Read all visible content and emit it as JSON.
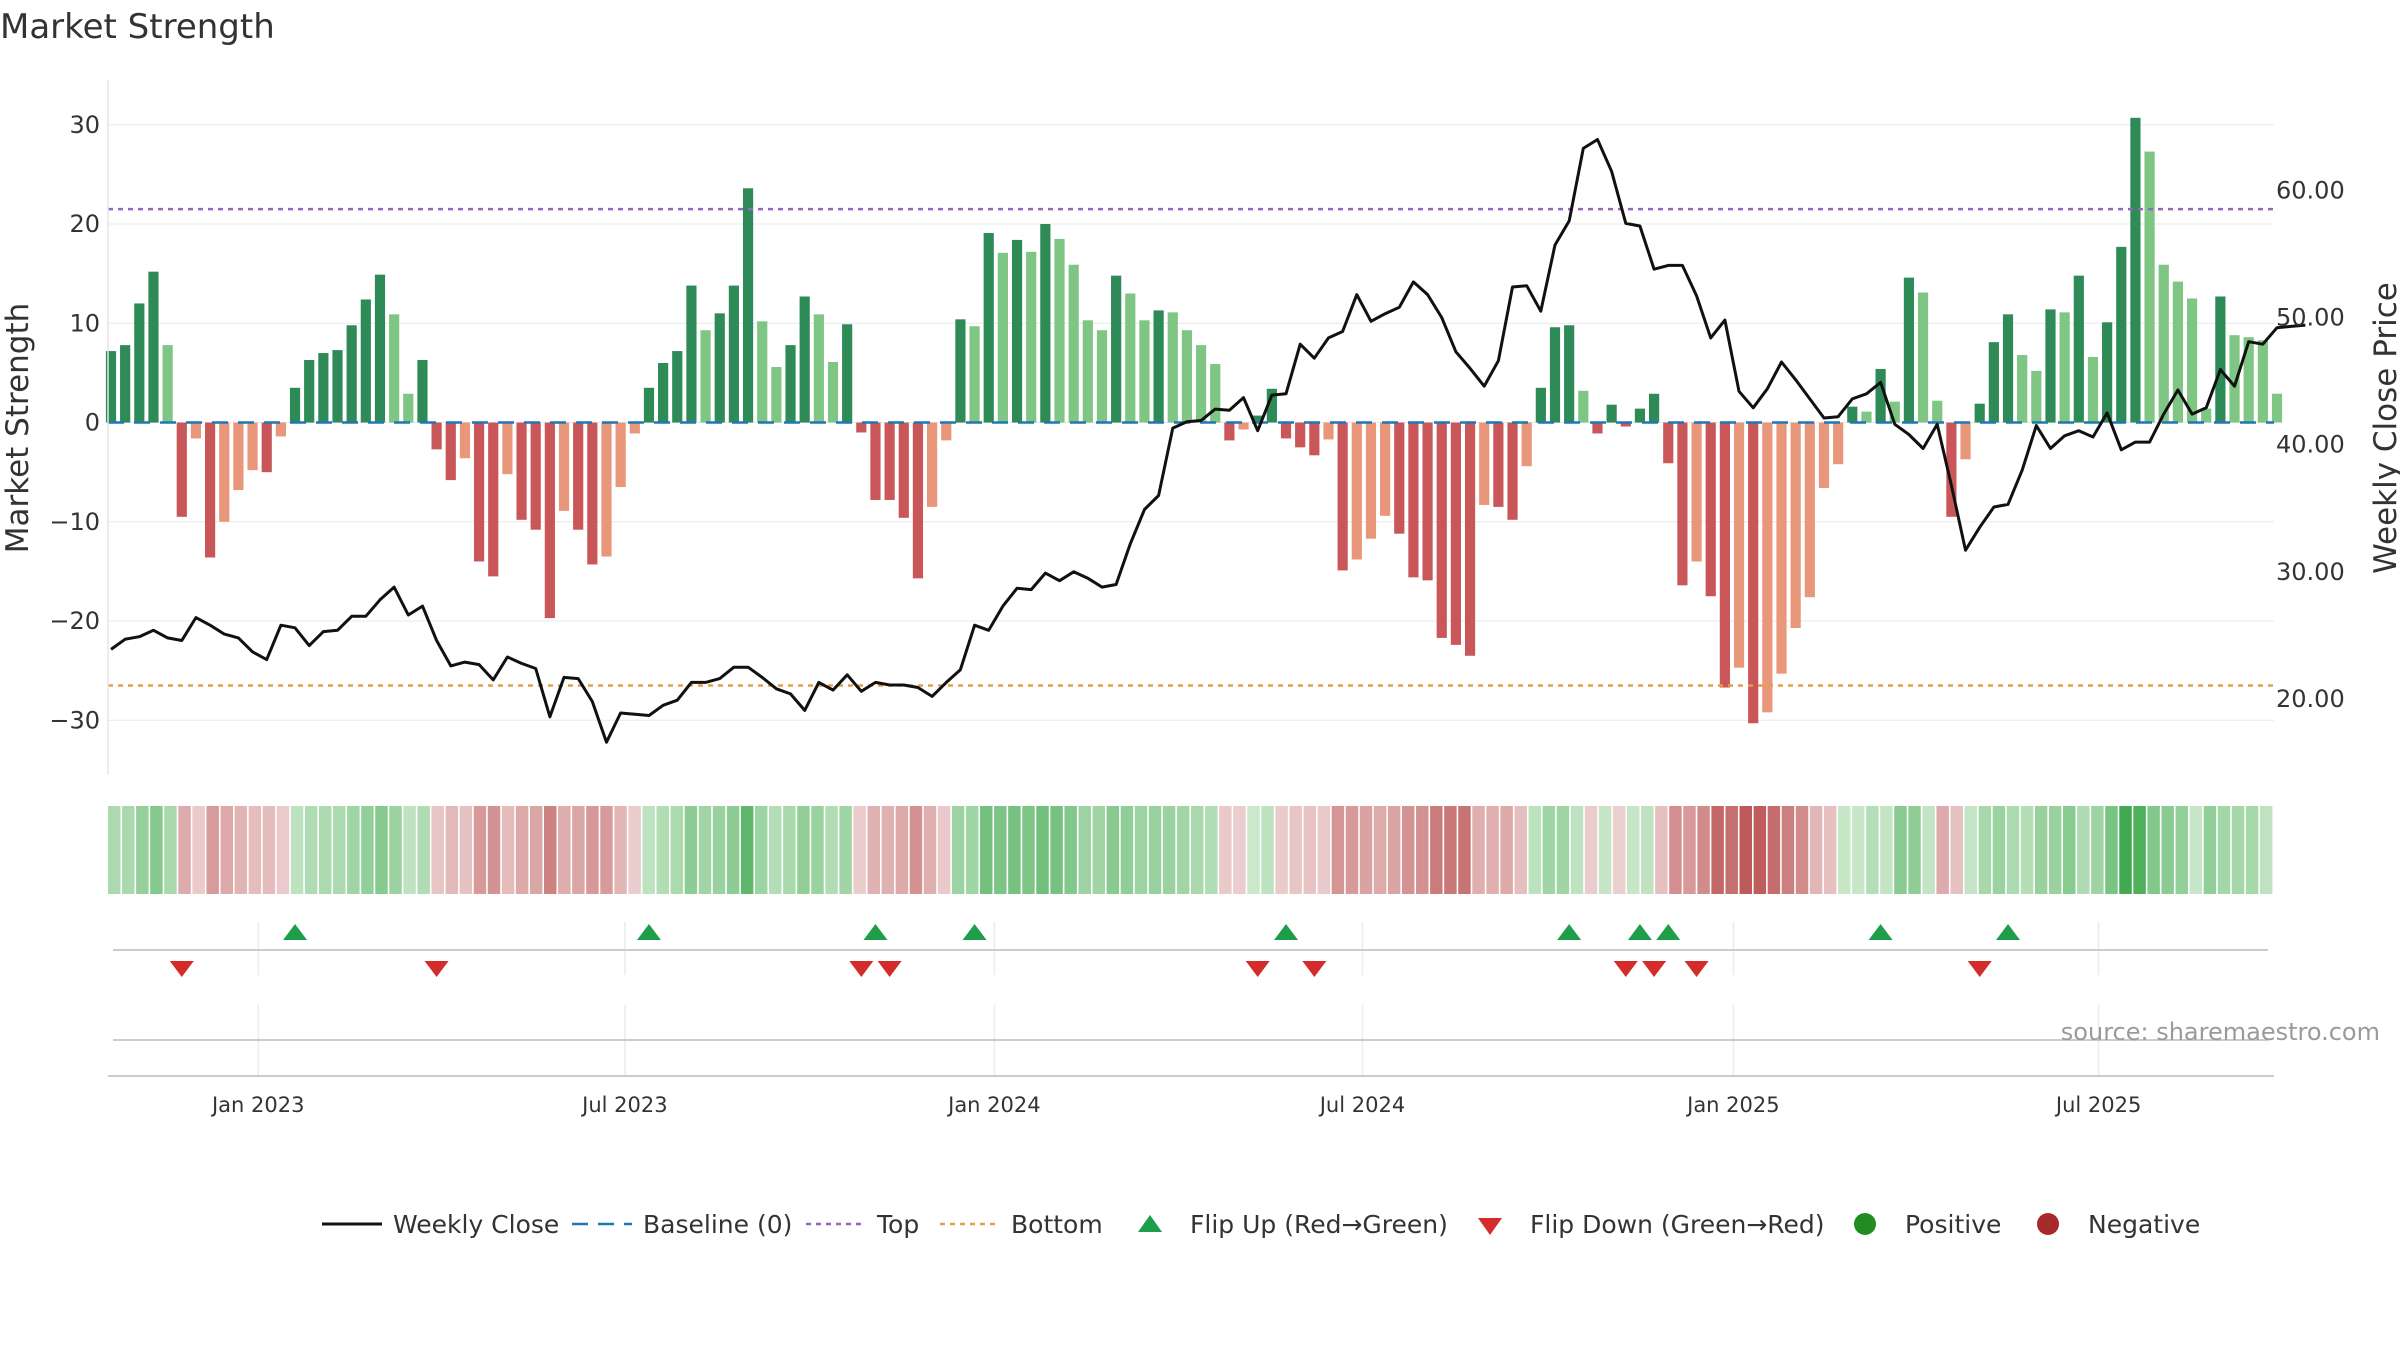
{
  "chart_data": {
    "type": "bar",
    "title": "Market Strength",
    "ylabel_left": "Market Strength",
    "ylabel_right": "Weekly Close Price",
    "ylim_left": [
      -34,
      33
    ],
    "ylim_right": [
      15.2,
      67.5
    ],
    "yticks_left": [
      30,
      20,
      10,
      0,
      -10,
      -20,
      -30
    ],
    "yticks_left_labels": [
      "30",
      "20",
      "10",
      "0",
      "−10",
      "−20",
      "−30"
    ],
    "yticks_right": [
      60,
      50,
      40,
      30,
      20
    ],
    "yticks_right_labels": [
      "60.00",
      "50.00",
      "40.00",
      "30.00",
      "20.00"
    ],
    "x_start": "2022-10-21",
    "x_end": "2025-09-05",
    "xtick_labels": [
      "Jan 2023",
      "Jul 2023",
      "Jan 2024",
      "Jul 2024",
      "Jan 2025",
      "Jul 2025"
    ],
    "xtick_weeks": [
      10.4,
      36.3,
      62.4,
      88.4,
      114.6,
      140.4
    ],
    "top_level": 21.5,
    "bottom_level": -26.5,
    "baseline": 0,
    "strength": [
      7.2,
      7.8,
      12,
      15.2,
      7.8,
      -9.5,
      -1.6,
      -13.6,
      -10,
      -6.8,
      -4.8,
      -5,
      -1.4,
      3.5,
      6.3,
      7,
      7.3,
      9.8,
      12.4,
      14.9,
      10.9,
      2.9,
      6.3,
      -2.7,
      -5.8,
      -3.6,
      -14,
      -15.5,
      -5.2,
      -9.8,
      -10.8,
      -19.7,
      -8.9,
      -10.8,
      -14.3,
      -13.5,
      -6.5,
      -1.1,
      3.5,
      6,
      7.2,
      13.8,
      9.3,
      11,
      13.8,
      23.6,
      10.2,
      5.6,
      7.8,
      12.7,
      10.9,
      6.1,
      9.9,
      -1,
      -7.8,
      -7.8,
      -9.6,
      -15.7,
      -8.5,
      -1.8,
      10.4,
      9.7,
      19.1,
      17.1,
      18.4,
      17.2,
      20,
      18.5,
      15.9,
      10.3,
      9.3,
      14.8,
      13,
      10.3,
      11.3,
      11.1,
      9.3,
      7.8,
      5.9,
      -1.8,
      -0.7,
      0.7,
      3.4,
      -1.6,
      -2.5,
      -3.3,
      -1.7,
      -14.9,
      -13.8,
      -11.7,
      -9.4,
      -11.2,
      -15.6,
      -15.9,
      -21.7,
      -22.4,
      -23.5,
      -8.3,
      -8.5,
      -9.8,
      -4.4,
      3.5,
      9.6,
      9.8,
      3.2,
      -1.1,
      1.8,
      -0.4,
      1.4,
      2.9,
      -4.1,
      -16.4,
      -14,
      -17.5,
      -26.7,
      -24.7,
      -30.3,
      -29.2,
      -25.3,
      -20.7,
      -17.6,
      -6.6,
      -4.2,
      1.6,
      1.1,
      5.4,
      2.1,
      14.6,
      13.1,
      2.2,
      -9.5,
      -3.7,
      1.9,
      8.1,
      10.9,
      6.8,
      5.2,
      11.4,
      11.1,
      14.8,
      6.6,
      10.1,
      17.7,
      30.7,
      27.3,
      15.9,
      14.2,
      12.5,
      1.4,
      12.7,
      8.8,
      8.6,
      8.3,
      2.9
    ],
    "weekly_close": [
      23.9,
      24.7,
      24.9,
      25.4,
      24.8,
      24.6,
      26.4,
      25.8,
      25.1,
      24.8,
      23.7,
      23.1,
      25.8,
      25.6,
      24.2,
      25.3,
      25.4,
      26.5,
      26.5,
      27.8,
      28.8,
      26.6,
      27.3,
      24.6,
      22.6,
      22.9,
      22.7,
      21.5,
      23.3,
      22.8,
      22.4,
      18.6,
      21.7,
      21.6,
      19.8,
      16.6,
      18.9,
      18.8,
      18.7,
      19.5,
      19.9,
      21.3,
      21.3,
      21.6,
      22.5,
      22.5,
      21.7,
      20.8,
      20.4,
      19.1,
      21.3,
      20.7,
      21.9,
      20.6,
      21.3,
      21.1,
      21.1,
      20.9,
      20.2,
      21.3,
      22.3,
      25.8,
      25.4,
      27.3,
      28.7,
      28.6,
      29.9,
      29.3,
      30,
      29.5,
      28.8,
      29,
      32.2,
      34.9,
      36,
      41.3,
      41.8,
      41.9,
      42.8,
      42.7,
      43.7,
      41.1,
      43.9,
      44,
      47.9,
      46.8,
      48.4,
      48.9,
      51.8,
      49.7,
      50.3,
      50.8,
      52.8,
      51.8,
      50,
      47.3,
      46,
      44.6,
      46.6,
      52.4,
      52.5,
      50.5,
      55.7,
      57.6,
      63.3,
      64,
      61.5,
      57.4,
      57.2,
      53.8,
      54.1,
      54.1,
      51.7,
      48.4,
      49.8,
      44.2,
      42.9,
      44.4,
      46.5,
      45.1,
      43.6,
      42.1,
      42.2,
      43.6,
      44,
      44.9,
      41.6,
      40.8,
      39.7,
      41.6,
      36.8,
      31.7,
      33.5,
      35.1,
      35.3,
      38,
      41.5,
      39.7,
      40.7,
      41.1,
      40.6,
      42.5,
      39.6,
      40.2,
      40.2,
      42.4,
      44.3,
      42.4,
      42.9,
      45.9,
      44.6,
      48.1,
      47.9,
      49.2,
      49.3,
      49.4
    ],
    "flip_up_weeks": [
      13,
      38,
      54,
      61,
      83,
      103,
      108,
      110,
      125,
      134
    ],
    "flip_down_weeks": [
      5,
      23,
      53,
      55,
      81,
      85,
      107,
      109,
      112,
      132
    ],
    "legend": [
      "Weekly Close",
      "Baseline (0)",
      "Top",
      "Bottom",
      "Flip Up (Red→Green)",
      "Flip Down (Green→Red)",
      "Positive",
      "Negative"
    ],
    "legend_position": "bottom-center",
    "grid": true,
    "source_text": "source: sharemaestro.com"
  },
  "colors": {
    "pos_dark": "#2e8b57",
    "pos_light": "#7fc583",
    "neg_dark": "#c9575a",
    "neg_light": "#e8977a",
    "close_line": "#111111",
    "baseline": "#1f77b4",
    "top": "#9467bd",
    "bottom": "#e0a04e",
    "flip_up": "#1f9e4a",
    "flip_down": "#d42b2b",
    "positive_dot": "#228b22",
    "negative_dot": "#a52a2a"
  }
}
